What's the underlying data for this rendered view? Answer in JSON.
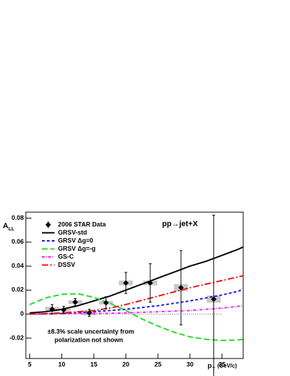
{
  "chart_data": {
    "type": "line",
    "title": "pp→jet+X",
    "y_label": "A",
    "y_label_sub": "LL",
    "x_label": "p",
    "x_label_sub": "T",
    "x_label_unit": "(GeV/c)",
    "xlim": [
      4.4,
      38.3
    ],
    "xticks": [
      5,
      10,
      15,
      20,
      25,
      30,
      35
    ],
    "ylim": [
      -0.037,
      0.085
    ],
    "yticks": [
      -0.02,
      0,
      0.02,
      0.04,
      0.06,
      0.08
    ],
    "data_points": {
      "name": "2006 STAR Data",
      "color": "#000000",
      "x": [
        8.5,
        10.3,
        12.1,
        14.3,
        16.9,
        20.0,
        23.8,
        28.6,
        33.7
      ],
      "values": [
        0.004,
        0.0035,
        0.01,
        0.001,
        0.0095,
        0.026,
        0.026,
        0.022,
        0.0125
      ],
      "errors": [
        0.004,
        0.003,
        0.003,
        0.003,
        0.005,
        0.0088,
        0.016,
        0.031,
        0.07
      ],
      "sys": [
        0.002,
        0.001,
        0.0015,
        0.002,
        0.0015,
        0.002,
        0.002,
        0.003,
        0.003
      ]
    },
    "curve_x": [
      5,
      7.5,
      10,
      12.5,
      15,
      17.5,
      20,
      22.5,
      25,
      27.5,
      30,
      32.5,
      35,
      37.5,
      38.3
    ],
    "series": [
      {
        "name": "GRSV-std",
        "color": "#000000",
        "dash": "solid",
        "values": [
          0.001,
          0.002,
          0.004,
          0.007,
          0.011,
          0.015,
          0.02,
          0.025,
          0.03,
          0.035,
          0.04,
          0.044,
          0.049,
          0.054,
          0.056
        ]
      },
      {
        "name": "GRSV Δg=0",
        "color": "#1a1aee",
        "dash": "dashed",
        "values": [
          0,
          0.0002,
          0.0005,
          0.001,
          0.002,
          0.003,
          0.004,
          0.0055,
          0.007,
          0.009,
          0.011,
          0.0135,
          0.016,
          0.019,
          0.021
        ]
      },
      {
        "name": "GRSV Δg=-g",
        "color": "#22dd22",
        "dash": "longdash",
        "values": [
          0.008,
          0.0135,
          0.0165,
          0.017,
          0.014,
          0.009,
          0.003,
          -0.004,
          -0.01,
          -0.015,
          -0.019,
          -0.021,
          -0.022,
          -0.0215,
          -0.021
        ]
      },
      {
        "name": "GS-C",
        "color": "#ee22ee",
        "dash": "dashdot",
        "values": [
          0,
          0.0001,
          0.0003,
          0.0004,
          0.0005,
          0.0007,
          0.001,
          0.0015,
          0.002,
          0.0025,
          0.003,
          0.004,
          0.005,
          0.0065,
          0.007
        ]
      },
      {
        "name": "DSSV",
        "color": "#ee1111",
        "dash": "longdashdot",
        "values": [
          0,
          0.0004,
          0.001,
          0.002,
          0.003,
          0.005,
          0.008,
          0.0115,
          0.015,
          0.0185,
          0.022,
          0.025,
          0.028,
          0.031,
          0.032
        ]
      }
    ],
    "annotations": [
      "±8.3% scale uncertainty from",
      "polarization not shown"
    ]
  }
}
